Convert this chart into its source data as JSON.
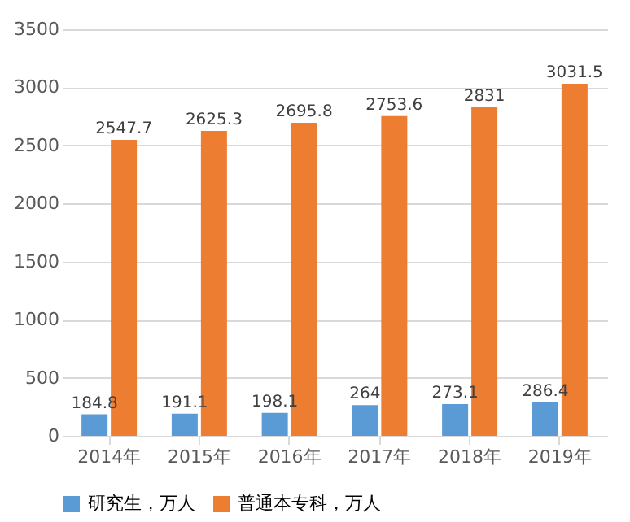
{
  "chart_data": {
    "type": "bar",
    "categories": [
      "2014年",
      "2015年",
      "2016年",
      "2017年",
      "2018年",
      "2019年"
    ],
    "series": [
      {
        "name": "研究生，万人",
        "color": "#5b9bd5",
        "values": [
          184.8,
          191.1,
          198.1,
          264,
          273.1,
          286.4
        ]
      },
      {
        "name": "普通本专科，万人",
        "color": "#ed7d31",
        "values": [
          2547.7,
          2625.3,
          2695.8,
          2753.6,
          2831,
          3031.5
        ]
      }
    ],
    "ylim": [
      0,
      3500
    ],
    "yticks": [
      0,
      500,
      1000,
      1500,
      2000,
      2500,
      3000,
      3500
    ],
    "grid": "y",
    "legend": "bottom",
    "data_labels": true
  }
}
